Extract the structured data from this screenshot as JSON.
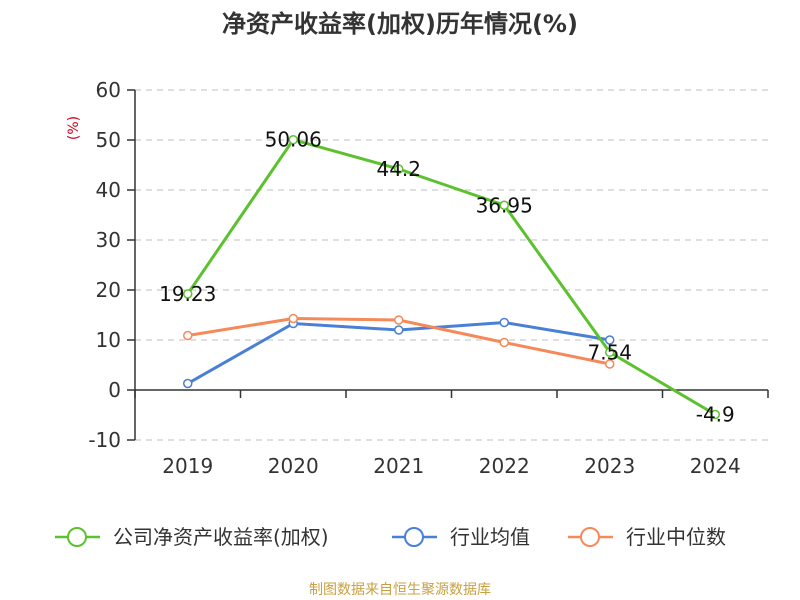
{
  "title": "净资产收益率(加权)历年情况(%)",
  "source": "制图数据来自恒生聚源数据库",
  "chart_data": {
    "type": "line",
    "title": "净资产收益率(加权)历年情况(%)",
    "xlabel": "",
    "ylabel": "(%)",
    "ylim": [
      -10,
      60
    ],
    "yticks": [
      -10,
      0,
      10,
      20,
      30,
      40,
      50,
      60
    ],
    "categories": [
      "2019",
      "2020",
      "2021",
      "2022",
      "2023",
      "2024"
    ],
    "series": [
      {
        "name": "公司净资产收益率(加权)",
        "color": "#5cc12e",
        "values": [
          19.23,
          50.06,
          44.2,
          36.95,
          7.54,
          -4.9
        ],
        "labels": [
          "19.23",
          "50.06",
          "44.2",
          "36.95",
          "7.54",
          "-4.9"
        ]
      },
      {
        "name": "行业均值",
        "color": "#4a7fd6",
        "values": [
          1.3,
          13.3,
          12.0,
          13.5,
          10.0,
          null
        ]
      },
      {
        "name": "行业中位数",
        "color": "#f5895a",
        "values": [
          10.9,
          14.3,
          14.0,
          9.5,
          5.2,
          null
        ]
      }
    ],
    "grid": true,
    "legend": "bottom"
  }
}
